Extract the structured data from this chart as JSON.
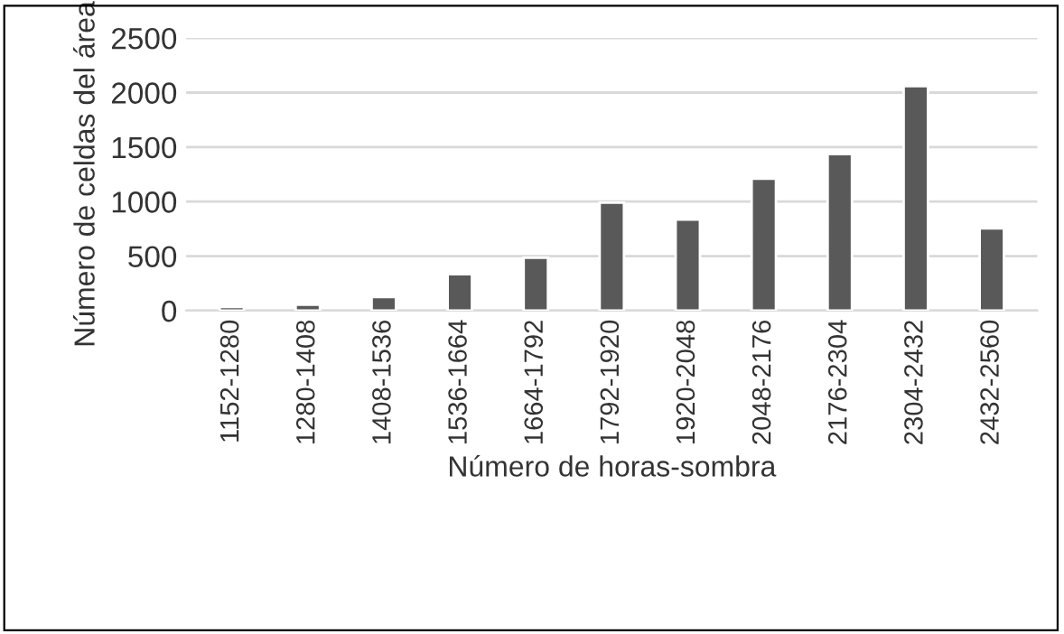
{
  "chart_data": {
    "type": "bar",
    "xlabel": "Número de horas-sombra",
    "ylabel": "Número de celdas del área",
    "categories": [
      "1152-1280",
      "1280-1408",
      "1408-1536",
      "1536-1664",
      "1664-1792",
      "1792-1920",
      "1920-2048",
      "2048-2176",
      "2176-2304",
      "2304-2432",
      "2432-2560"
    ],
    "values": [
      35,
      55,
      125,
      335,
      485,
      990,
      835,
      1210,
      1435,
      2060,
      755
    ],
    "color": "#595959",
    "ylim": [
      0,
      2500
    ],
    "yticks": [
      0,
      500,
      1000,
      1500,
      2000,
      2500
    ],
    "grid": "y"
  }
}
